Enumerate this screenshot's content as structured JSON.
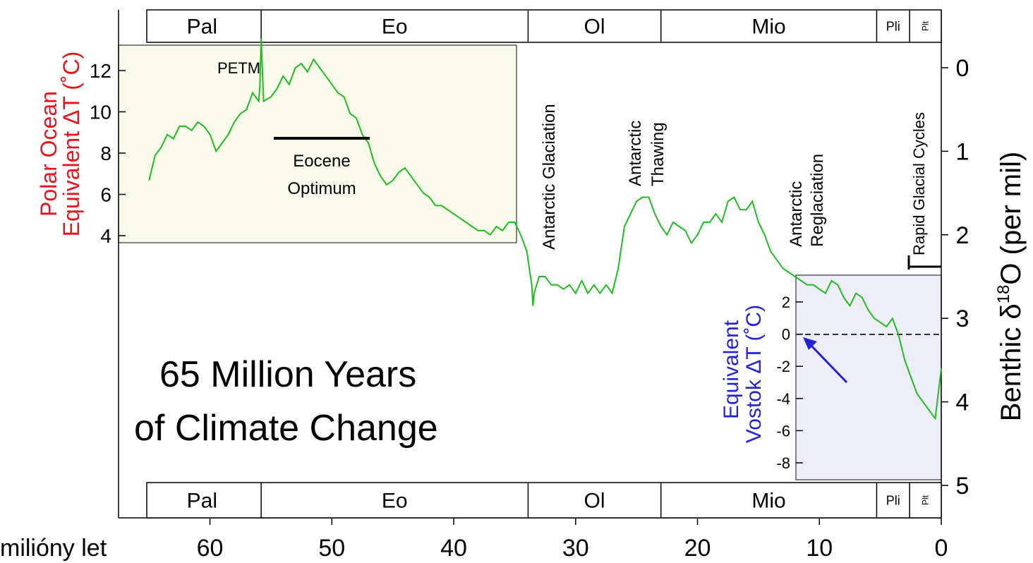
{
  "chart_data": {
    "type": "line",
    "title_line1": "65 Million Years",
    "title_line2": "of Climate Change",
    "xlabel": "milióny let",
    "x_ticks": [
      60,
      50,
      40,
      30,
      20,
      10,
      0
    ],
    "xlim": [
      67.5,
      0
    ],
    "x_unit": "Ma",
    "right_axis": {
      "label_main": "Benthic δ",
      "label_sup": "18",
      "label_tail": "O (per mil)",
      "ticks": [
        0,
        1,
        2,
        3,
        4,
        5
      ],
      "range_top": -0.5,
      "range_bottom": 5.2,
      "inverted": true
    },
    "left_axis": {
      "label_line1": "Polar Ocean",
      "label_line2": "Equivalent  ΔT (˚C)",
      "ticks": [
        12,
        10,
        8,
        6,
        4
      ],
      "color": "#e8141e"
    },
    "vostok_axis": {
      "label_line1": "Equivalent",
      "label_line2": "Vostok  ΔT (˚C)",
      "ticks": [
        2,
        0,
        -2,
        -4,
        -6,
        -8
      ],
      "color": "#2222dd"
    },
    "epochs": [
      {
        "name": "Pal",
        "start": 65.5,
        "end": 55.8
      },
      {
        "name": "Eo",
        "start": 55.8,
        "end": 33.9
      },
      {
        "name": "Ol",
        "start": 33.9,
        "end": 23.0
      },
      {
        "name": "Mio",
        "start": 23.0,
        "end": 5.3
      },
      {
        "name": "Pli",
        "start": 5.3,
        "end": 2.6
      },
      {
        "name": "Plt",
        "start": 2.6,
        "end": 0
      }
    ],
    "annotations": {
      "petm": "PETM",
      "eocene_line1": "Eocene",
      "eocene_line2": "Optimum",
      "antarctic_glaciation": "Antarctic Glaciation",
      "thawing_line1": "Antarctic",
      "thawing_line2": "Thawing",
      "reglaciation_line1": "Antarctic",
      "reglaciation_line2": "Reglaciation",
      "rapid_cycles": "Rapid Glacial Cycles"
    },
    "colors": {
      "series": "#22bb22",
      "polar_box": "#fafaea",
      "vostok_box": "#eeeefa",
      "arrow": "#2222dd"
    },
    "series": [
      {
        "x": [
          65,
          64.5,
          64,
          63.5,
          63,
          62.5,
          62,
          61.5,
          61,
          60.5,
          60,
          59.5,
          59,
          58.5,
          58,
          57.5,
          57,
          56.5,
          56,
          55.9,
          55.8,
          55.6,
          55,
          54.5,
          54,
          53.5,
          53,
          52.5,
          52,
          51.5,
          51,
          50.5,
          50,
          49.5,
          49,
          48.5,
          48,
          47.5,
          47,
          46.5,
          46,
          45.5,
          45,
          44.5,
          44,
          43.5,
          43,
          42.5,
          42,
          41.5,
          41,
          40.5,
          40,
          39.5,
          39,
          38.5,
          38,
          37.5,
          37,
          36.5,
          36,
          35.5,
          35,
          34.5,
          34,
          33.8,
          33.6,
          33.5,
          33.4,
          33,
          32.5,
          32,
          31.5,
          31,
          30.5,
          30,
          29.5,
          29,
          28.5,
          28,
          27.5,
          27,
          26.5,
          26,
          25.5,
          25,
          24.5,
          24,
          23.5,
          23,
          22.5,
          22,
          21.5,
          21,
          20.5,
          20,
          19.5,
          19,
          18.5,
          18,
          17.5,
          17,
          16.5,
          16,
          15.5,
          15,
          14.5,
          14,
          13.5,
          13,
          12.5,
          12,
          11.5,
          11,
          10.5,
          10,
          9.5,
          9,
          8.5,
          8,
          7.5,
          7,
          6.5,
          6,
          5.5,
          5,
          4.5,
          4,
          3.5,
          3,
          2.5,
          2,
          1.5,
          1,
          0.5,
          0
        ],
        "y": [
          1.35,
          1.05,
          0.95,
          0.8,
          0.85,
          0.7,
          0.7,
          0.75,
          0.65,
          0.7,
          0.8,
          1.0,
          0.9,
          0.8,
          0.65,
          0.55,
          0.5,
          0.3,
          0.4,
          0.2,
          -0.35,
          0.4,
          0.35,
          0.25,
          0.1,
          0.2,
          0.0,
          -0.05,
          0.05,
          -0.1,
          0.0,
          0.1,
          0.2,
          0.3,
          0.35,
          0.55,
          0.6,
          0.8,
          0.9,
          1.15,
          1.3,
          1.4,
          1.35,
          1.25,
          1.2,
          1.3,
          1.4,
          1.5,
          1.55,
          1.65,
          1.65,
          1.7,
          1.75,
          1.8,
          1.85,
          1.9,
          1.95,
          1.95,
          2.0,
          1.9,
          1.95,
          1.85,
          1.85,
          2.0,
          2.2,
          2.4,
          2.6,
          2.85,
          2.7,
          2.5,
          2.5,
          2.6,
          2.6,
          2.65,
          2.6,
          2.7,
          2.55,
          2.7,
          2.6,
          2.7,
          2.6,
          2.7,
          2.4,
          1.9,
          1.75,
          1.6,
          1.55,
          1.55,
          1.75,
          1.9,
          2.0,
          1.85,
          1.9,
          1.95,
          2.1,
          2.0,
          1.85,
          1.85,
          1.75,
          1.85,
          1.6,
          1.55,
          1.7,
          1.7,
          1.6,
          1.85,
          2.0,
          2.2,
          2.3,
          2.4,
          2.45,
          2.5,
          2.55,
          2.6,
          2.6,
          2.65,
          2.7,
          2.55,
          2.6,
          2.75,
          2.85,
          2.7,
          2.75,
          2.9,
          3.0,
          3.05,
          3.1,
          3.0,
          3.2,
          3.5,
          3.7,
          3.9,
          4.0,
          4.1,
          4.2,
          3.6
        ]
      }
    ]
  }
}
